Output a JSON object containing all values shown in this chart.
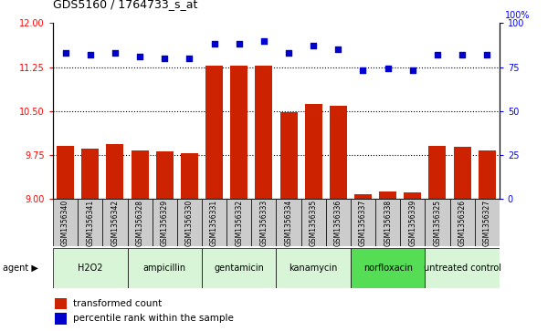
{
  "title": "GDS5160 / 1764733_s_at",
  "samples": [
    "GSM1356340",
    "GSM1356341",
    "GSM1356342",
    "GSM1356328",
    "GSM1356329",
    "GSM1356330",
    "GSM1356331",
    "GSM1356332",
    "GSM1356333",
    "GSM1356334",
    "GSM1356335",
    "GSM1356336",
    "GSM1356337",
    "GSM1356338",
    "GSM1356339",
    "GSM1356325",
    "GSM1356326",
    "GSM1356327"
  ],
  "transformed_count": [
    9.9,
    9.85,
    9.93,
    9.83,
    9.8,
    9.78,
    11.28,
    11.27,
    11.28,
    10.48,
    10.62,
    10.58,
    9.08,
    9.12,
    9.1,
    9.9,
    9.88,
    9.83
  ],
  "percentile_rank": [
    83,
    82,
    83,
    81,
    80,
    80,
    88,
    88,
    90,
    83,
    87,
    85,
    73,
    74,
    73,
    82,
    82,
    82
  ],
  "agents": [
    {
      "label": "H2O2",
      "start": 0,
      "end": 3,
      "color": "#d8f5d8"
    },
    {
      "label": "ampicillin",
      "start": 3,
      "end": 6,
      "color": "#d8f5d8"
    },
    {
      "label": "gentamicin",
      "start": 6,
      "end": 9,
      "color": "#d8f5d8"
    },
    {
      "label": "kanamycin",
      "start": 9,
      "end": 12,
      "color": "#d8f5d8"
    },
    {
      "label": "norfloxacin",
      "start": 12,
      "end": 15,
      "color": "#55dd55"
    },
    {
      "label": "untreated control",
      "start": 15,
      "end": 18,
      "color": "#d8f5d8"
    }
  ],
  "ylim_left": [
    9.0,
    12.0
  ],
  "ylim_right": [
    0,
    100
  ],
  "yticks_left": [
    9.0,
    9.75,
    10.5,
    11.25,
    12.0
  ],
  "yticks_right": [
    0,
    25,
    50,
    75,
    100
  ],
  "bar_color": "#cc2200",
  "dot_color": "#0000cc",
  "legend_red": "transformed count",
  "legend_blue": "percentile rank within the sample",
  "dotted_lines": [
    9.75,
    10.5,
    11.25
  ],
  "bar_bottom": 9.0,
  "sample_box_color": "#cccccc",
  "label_fontsize": 5.5,
  "agent_fontsize": 7.0,
  "title_fontsize": 9
}
